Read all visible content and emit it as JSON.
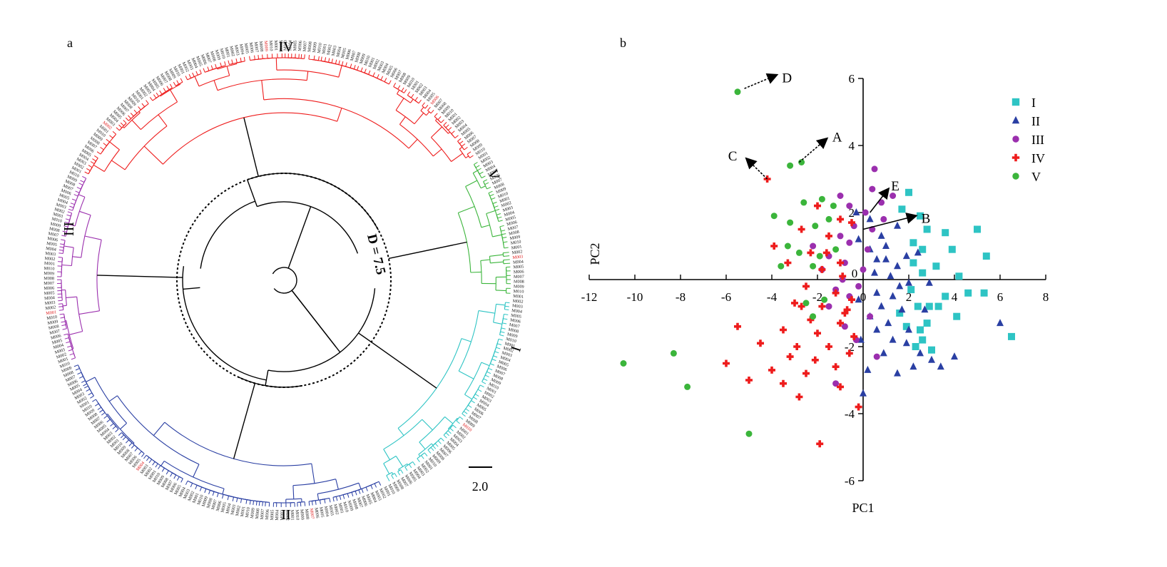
{
  "panel_a": {
    "label": "a",
    "cluster_labels": {
      "I": "I",
      "II": "II",
      "III": "III",
      "IV": "IV",
      "V": "V"
    },
    "threshold_label": "D = 7.5",
    "scale_bar_label": "2.0",
    "colors": {
      "I": "#2ec4c4",
      "II": "#2a3fa3",
      "III": "#9b2fae",
      "IV": "#ee1c1c",
      "V": "#3bb53b",
      "backbone": "#000000"
    },
    "leaf_label_sample": [
      "M001",
      "M002",
      "M003",
      "M004",
      "M005",
      "M006",
      "M007",
      "M008",
      "M009",
      "M010"
    ]
  },
  "panel_b": {
    "label": "b",
    "arrow_labels": [
      "A",
      "B",
      "C",
      "D",
      "E"
    ],
    "legend": [
      {
        "name": "I",
        "color": "#2ec4c4",
        "marker": "square"
      },
      {
        "name": "II",
        "color": "#2a3fa3",
        "marker": "triangle"
      },
      {
        "name": "III",
        "color": "#9b2fae",
        "marker": "circle"
      },
      {
        "name": "IV",
        "color": "#ee1c1c",
        "marker": "cross"
      },
      {
        "name": "V",
        "color": "#3bb53b",
        "marker": "circle"
      }
    ]
  },
  "chart_data": {
    "type": "scatter",
    "xlabel": "PC1",
    "ylabel": "PC2",
    "xlim": [
      -12,
      8
    ],
    "ylim": [
      -6,
      6
    ],
    "xticks": [
      -12,
      -10,
      -8,
      -6,
      -4,
      -2,
      0,
      2,
      4,
      6,
      8
    ],
    "yticks": [
      -6,
      -4,
      -2,
      0,
      2,
      4,
      6
    ],
    "legend_position": "top-right",
    "grid": false,
    "series": [
      {
        "name": "I",
        "color": "#2ec4c4",
        "marker": "square",
        "points": [
          [
            2.0,
            2.6
          ],
          [
            2.5,
            1.9
          ],
          [
            3.6,
            1.4
          ],
          [
            2.2,
            1.1
          ],
          [
            2.6,
            0.9
          ],
          [
            3.2,
            0.4
          ],
          [
            2.6,
            0.2
          ],
          [
            4.2,
            0.1
          ],
          [
            3.6,
            -0.5
          ],
          [
            4.6,
            -0.4
          ],
          [
            5.0,
            1.5
          ],
          [
            5.4,
            0.7
          ],
          [
            2.4,
            -0.8
          ],
          [
            2.9,
            -0.8
          ],
          [
            3.3,
            -0.8
          ],
          [
            4.1,
            -1.1
          ],
          [
            2.8,
            -1.3
          ],
          [
            1.9,
            -1.4
          ],
          [
            2.5,
            -1.5
          ],
          [
            2.6,
            -1.8
          ],
          [
            3.0,
            -2.1
          ],
          [
            2.3,
            -2.0
          ],
          [
            6.5,
            -1.7
          ],
          [
            5.3,
            -0.4
          ],
          [
            2.1,
            -0.3
          ],
          [
            1.6,
            -1.0
          ],
          [
            2.2,
            0.5
          ],
          [
            3.9,
            0.9
          ],
          [
            2.8,
            1.5
          ],
          [
            1.7,
            2.1
          ]
        ]
      },
      {
        "name": "II",
        "color": "#2a3fa3",
        "marker": "triangle",
        "points": [
          [
            -0.3,
            2.0
          ],
          [
            0.3,
            1.8
          ],
          [
            1.5,
            1.6
          ],
          [
            0.8,
            1.3
          ],
          [
            -0.2,
            1.2
          ],
          [
            0.3,
            0.9
          ],
          [
            1.0,
            0.6
          ],
          [
            1.5,
            0.4
          ],
          [
            0.5,
            0.2
          ],
          [
            1.2,
            0.1
          ],
          [
            2.0,
            -0.1
          ],
          [
            0.6,
            -0.4
          ],
          [
            1.3,
            -0.5
          ],
          [
            -0.2,
            -0.6
          ],
          [
            0.8,
            -0.8
          ],
          [
            1.7,
            -0.9
          ],
          [
            0.3,
            -1.1
          ],
          [
            1.1,
            -1.3
          ],
          [
            2.0,
            -1.5
          ],
          [
            -0.1,
            -1.8
          ],
          [
            0.9,
            -2.2
          ],
          [
            2.5,
            -2.2
          ],
          [
            3.0,
            -2.4
          ],
          [
            0.2,
            -2.7
          ],
          [
            1.5,
            -2.8
          ],
          [
            0.0,
            -3.4
          ],
          [
            3.4,
            -2.6
          ],
          [
            2.2,
            -2.6
          ],
          [
            6.0,
            -1.3
          ],
          [
            4.0,
            -2.3
          ],
          [
            2.4,
            0.8
          ],
          [
            1.9,
            0.7
          ],
          [
            1.6,
            -0.2
          ],
          [
            2.9,
            -0.1
          ],
          [
            0.6,
            0.6
          ],
          [
            1.3,
            -1.8
          ],
          [
            0.6,
            -1.5
          ],
          [
            1.9,
            -1.9
          ],
          [
            2.7,
            -0.9
          ],
          [
            1.0,
            1.0
          ]
        ]
      },
      {
        "name": "III",
        "color": "#9b2fae",
        "marker": "circle",
        "points": [
          [
            0.5,
            3.3
          ],
          [
            1.3,
            2.5
          ],
          [
            0.8,
            2.3
          ],
          [
            -0.6,
            2.2
          ],
          [
            0.1,
            2.0
          ],
          [
            0.9,
            1.8
          ],
          [
            -0.4,
            1.6
          ],
          [
            0.4,
            1.5
          ],
          [
            -1.0,
            1.3
          ],
          [
            -0.6,
            1.1
          ],
          [
            0.2,
            0.9
          ],
          [
            -1.5,
            0.7
          ],
          [
            -0.8,
            0.5
          ],
          [
            0.0,
            0.3
          ],
          [
            -0.9,
            0.0
          ],
          [
            -1.8,
            0.3
          ],
          [
            -1.2,
            -0.3
          ],
          [
            -0.6,
            -0.5
          ],
          [
            -1.5,
            -0.8
          ],
          [
            0.3,
            -1.1
          ],
          [
            -0.8,
            -1.4
          ],
          [
            -0.3,
            -1.8
          ],
          [
            0.6,
            -2.3
          ],
          [
            -1.2,
            -3.1
          ],
          [
            -0.2,
            -0.2
          ],
          [
            0.4,
            2.7
          ],
          [
            -1.0,
            2.5
          ],
          [
            -2.2,
            1.0
          ]
        ]
      },
      {
        "name": "IV",
        "color": "#ee1c1c",
        "marker": "cross",
        "points": [
          [
            -4.2,
            3.0
          ],
          [
            -2.0,
            2.2
          ],
          [
            -1.0,
            1.8
          ],
          [
            -0.5,
            1.7
          ],
          [
            -2.7,
            1.5
          ],
          [
            -1.5,
            1.3
          ],
          [
            -3.9,
            1.0
          ],
          [
            -2.3,
            0.8
          ],
          [
            -1.0,
            0.5
          ],
          [
            -1.8,
            0.3
          ],
          [
            -0.9,
            0.1
          ],
          [
            -2.5,
            -0.2
          ],
          [
            -1.2,
            -0.4
          ],
          [
            -0.5,
            -0.6
          ],
          [
            -3.0,
            -0.7
          ],
          [
            -1.8,
            -0.8
          ],
          [
            -0.8,
            -1.0
          ],
          [
            -2.3,
            -1.2
          ],
          [
            -1.0,
            -1.3
          ],
          [
            -5.5,
            -1.4
          ],
          [
            -3.5,
            -1.5
          ],
          [
            -2.0,
            -1.6
          ],
          [
            -0.4,
            -1.7
          ],
          [
            -4.5,
            -1.9
          ],
          [
            -2.9,
            -2.0
          ],
          [
            -1.5,
            -2.0
          ],
          [
            -0.6,
            -2.2
          ],
          [
            -3.2,
            -2.3
          ],
          [
            -2.1,
            -2.4
          ],
          [
            -6.0,
            -2.5
          ],
          [
            -1.2,
            -2.6
          ],
          [
            -4.0,
            -2.7
          ],
          [
            -2.5,
            -2.8
          ],
          [
            -5.0,
            -3.0
          ],
          [
            -3.5,
            -3.1
          ],
          [
            -1.0,
            -3.2
          ],
          [
            -2.8,
            -3.5
          ],
          [
            -0.2,
            -3.8
          ],
          [
            -1.9,
            -4.9
          ],
          [
            -0.7,
            -0.9
          ],
          [
            -1.6,
            0.8
          ],
          [
            -3.3,
            0.5
          ],
          [
            -2.7,
            -0.8
          ]
        ]
      },
      {
        "name": "V",
        "color": "#3bb53b",
        "marker": "circle",
        "points": [
          [
            -5.5,
            5.6
          ],
          [
            -3.2,
            3.4
          ],
          [
            -2.7,
            3.5
          ],
          [
            -1.8,
            2.4
          ],
          [
            -2.6,
            2.3
          ],
          [
            -1.3,
            2.2
          ],
          [
            -1.5,
            1.8
          ],
          [
            -3.9,
            1.9
          ],
          [
            -3.2,
            1.7
          ],
          [
            -2.1,
            1.6
          ],
          [
            -3.3,
            1.0
          ],
          [
            -2.8,
            0.8
          ],
          [
            -3.6,
            0.4
          ],
          [
            -1.9,
            0.7
          ],
          [
            -2.2,
            0.4
          ],
          [
            -1.2,
            0.9
          ],
          [
            -2.5,
            -0.7
          ],
          [
            -1.7,
            -0.6
          ],
          [
            -10.5,
            -2.5
          ],
          [
            -8.3,
            -2.2
          ],
          [
            -7.7,
            -3.2
          ],
          [
            -5.0,
            -4.6
          ],
          [
            -2.2,
            -1.1
          ]
        ]
      }
    ],
    "arrows": [
      {
        "label": "A",
        "from": [
          -2.8,
          3.5
        ],
        "to": [
          -1.6,
          4.2
        ]
      },
      {
        "label": "B",
        "from": [
          0.0,
          1.5
        ],
        "to": [
          2.3,
          1.9
        ]
      },
      {
        "label": "C",
        "from": [
          -4.2,
          3.0
        ],
        "to": [
          -5.1,
          3.6
        ]
      },
      {
        "label": "D",
        "from": [
          -5.2,
          5.7
        ],
        "to": [
          -3.8,
          6.1
        ]
      },
      {
        "label": "E",
        "from": [
          0.3,
          2.0
        ],
        "to": [
          1.1,
          2.7
        ]
      }
    ]
  }
}
